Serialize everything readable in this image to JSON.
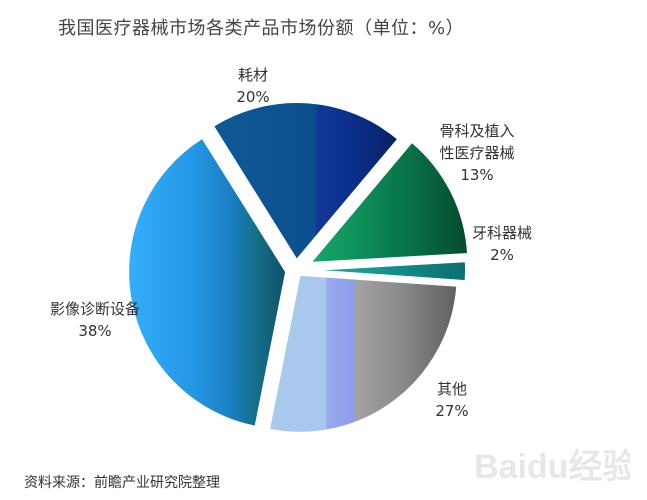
{
  "chart_data": {
    "type": "pie",
    "title": "我国医疗器械市场各类产品市场份额（单位：%）",
    "slices": [
      {
        "label": "耗材",
        "value": 20,
        "value_label": "20%",
        "color": "#0d4f8c"
      },
      {
        "label": "骨科及植入性医疗器械",
        "label_lines": [
          "骨科及植入",
          "性医疗器械"
        ],
        "value": 13,
        "value_label": "13%",
        "color": "#0a6b48"
      },
      {
        "label": "牙科器械",
        "value": 2,
        "value_label": "2%",
        "color": "#0d8a8a"
      },
      {
        "label": "其他",
        "value": 27,
        "value_label": "27%",
        "color": "#8a8a8a"
      },
      {
        "label": "影像诊断设备",
        "value": 38,
        "value_label": "38%",
        "color": "#1e8ed8"
      }
    ]
  },
  "footer": {
    "source": "资料来源：前瞻产业研究院整理"
  },
  "watermark": {
    "text": "Baidu经验"
  }
}
